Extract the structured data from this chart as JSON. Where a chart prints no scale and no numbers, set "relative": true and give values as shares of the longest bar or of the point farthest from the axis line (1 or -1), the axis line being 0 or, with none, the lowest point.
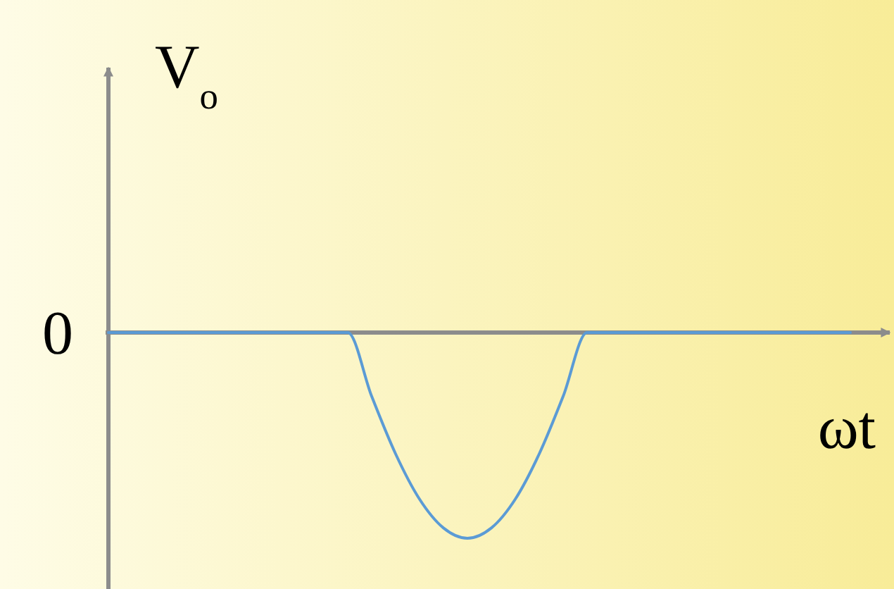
{
  "chart_data": {
    "type": "line",
    "relative": true,
    "ylabel": "V$_{o}$",
    "xlabel": "ωt",
    "annotations": [
      "0"
    ],
    "categories": [
      null,
      null,
      null,
      null,
      null,
      null,
      null,
      null,
      null,
      null,
      null,
      null,
      null,
      null,
      null,
      null,
      null,
      null,
      null,
      null,
      null,
      null,
      null,
      null,
      null,
      null,
      null,
      null,
      null,
      null,
      null,
      null
    ],
    "values": [
      0,
      0,
      0,
      0,
      0,
      0,
      0,
      0,
      0,
      0,
      0,
      -0.31,
      -0.59,
      -0.81,
      -0.95,
      -1,
      -0.95,
      -0.81,
      -0.59,
      -0.31,
      0,
      0,
      0,
      0,
      0,
      0,
      0,
      0,
      0,
      0,
      0,
      0
    ],
    "color": "#5b9bd5"
  }
}
